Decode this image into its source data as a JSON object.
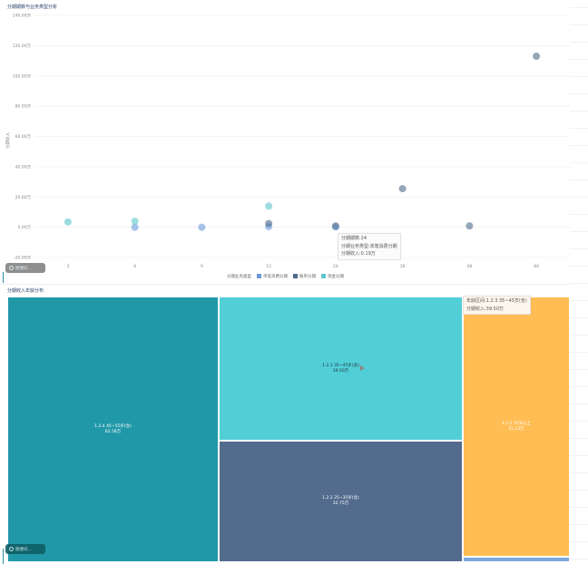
{
  "scatter": {
    "title": "分期期数与业务类型分析",
    "ylabel": "分期收入",
    "tooltip": {
      "line1": "分期期数:24",
      "line2": "分期业务类型:单笔消费分期",
      "line3": "分期收入:0.19万"
    },
    "ask_label": "随便问..."
  },
  "treemap": {
    "title": "分期收入年龄分布",
    "tooltip": {
      "line1": "年龄区间:1.2.3 35~45岁(含)",
      "line2": "分期收入:39.50万"
    },
    "ask_label": "随便问..."
  },
  "chart_data": [
    {
      "type": "scatter",
      "title": "分期期数与业务类型分析",
      "xlabel": "",
      "ylabel": "分期收入",
      "x_categories": [
        "3",
        "6",
        "9",
        "12",
        "24",
        "36",
        "48",
        "60"
      ],
      "y_ticks": [
        "140.00万",
        "120.00万",
        "100.00万",
        "80.00万",
        "60.00万",
        "40.00万",
        "20.00万",
        "0.00万",
        "-20.00万"
      ],
      "ylim": [
        -20,
        140
      ],
      "grid": true,
      "legend_title": "分期业务类型",
      "legend_position": "bottom",
      "series": [
        {
          "name": "单笔消费分期",
          "color": "#6b9bd8",
          "points": [
            [
              6,
              0.0
            ],
            [
              9,
              0.0
            ],
            [
              12,
              0.4
            ],
            [
              24,
              0.19
            ]
          ]
        },
        {
          "name": "账单分期",
          "color": "#4d6a8a",
          "points": [
            [
              12,
              2.5
            ],
            [
              24,
              0.8
            ],
            [
              36,
              25.5
            ],
            [
              48,
              0.9
            ],
            [
              60,
              113.0
            ]
          ]
        },
        {
          "name": "现金分期",
          "color": "#5ec7c9",
          "points": [
            [
              3,
              3.5
            ],
            [
              6,
              4.0
            ],
            [
              12,
              14.0
            ]
          ]
        }
      ]
    },
    {
      "type": "treemap",
      "title": "分期收入年龄分布",
      "unit": "万",
      "items": [
        {
          "label": "1.2.4 45~55岁(含)",
          "value_text": "62.58万",
          "value": 62.58,
          "color": "#2198a8"
        },
        {
          "label": "1.2.3 35~45岁(含)",
          "value_text": "39.50万",
          "value": 39.5,
          "color": "#52cfd6"
        },
        {
          "label": "1.2.2 25~35岁(含)",
          "value_text": "32.75万",
          "value": 32.75,
          "color": "#536b8d"
        },
        {
          "label": "1.2.5 55岁以上",
          "value_text": "31.13万",
          "value": 31.13,
          "color": "#ffbd54"
        },
        {
          "label": "",
          "value_text": "",
          "value": 0.9,
          "color": "#7ea6e0"
        }
      ]
    }
  ]
}
